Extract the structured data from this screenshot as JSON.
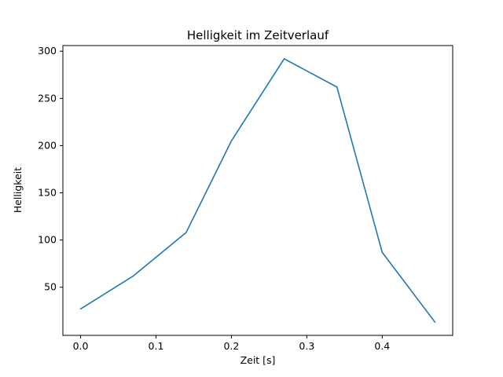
{
  "chart_data": {
    "type": "line",
    "title": "Helligkeit im Zeitverlauf",
    "xlabel": "Zeit [s]",
    "ylabel": "Helligkeit",
    "x": [
      0.0,
      0.07,
      0.14,
      0.2,
      0.27,
      0.34,
      0.4,
      0.47
    ],
    "y": [
      27,
      62,
      108,
      205,
      292,
      262,
      87,
      13
    ],
    "series_name": "Helligkeit",
    "line_color": "#1f77b4",
    "axis_color": "#000000",
    "background_color": "#ffffff",
    "xlim": [
      -0.0235,
      0.4935
    ],
    "ylim": [
      -1,
      306
    ],
    "xticks": [
      0.0,
      0.1,
      0.2,
      0.3,
      0.4
    ],
    "xtick_labels": [
      "0.0",
      "0.1",
      "0.2",
      "0.3",
      "0.4"
    ],
    "yticks": [
      50,
      100,
      150,
      200,
      250,
      300
    ],
    "ytick_labels": [
      "50",
      "100",
      "150",
      "200",
      "250",
      "300"
    ],
    "grid": false,
    "legend": null
  }
}
